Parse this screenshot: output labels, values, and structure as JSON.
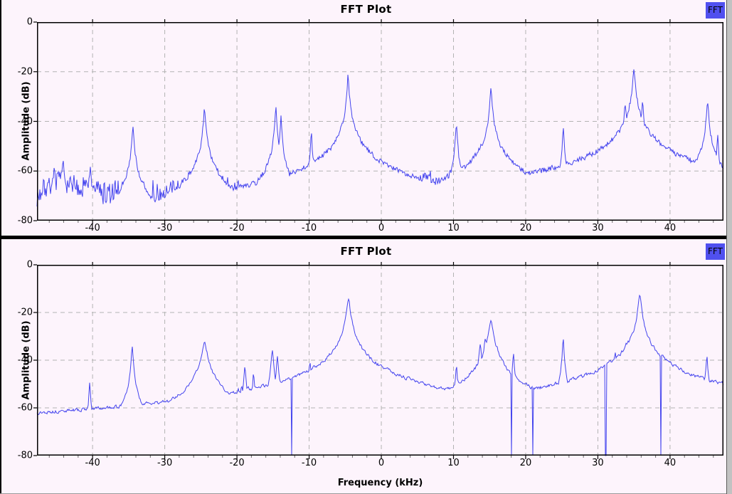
{
  "window": {
    "background": "#fdf4fc",
    "grid_color": "#b3b3b3",
    "axis_color": "#000000",
    "button_bg": "#5050ef"
  },
  "chart_data": [
    {
      "type": "line",
      "title": "FFT Plot",
      "button_label": "FFT",
      "ylabel": "Amplitude (dB)",
      "xlabel": "",
      "x_range": [
        -47.7,
        47.4
      ],
      "ylim": [
        -80,
        0
      ],
      "xticks": [
        -40,
        -30,
        -20,
        -10,
        0,
        10,
        20,
        30,
        40
      ],
      "yticks": [
        0,
        -20,
        -40,
        -60,
        -80
      ],
      "grid": true,
      "legend": "none",
      "line_color": "#4444ee",
      "seed": 7,
      "noise": {
        "mean": -70,
        "jitter": 8,
        "smooth": 0.85,
        "spike_prob": 0.18,
        "spike_depth": 14
      },
      "quiet_zones": [
        [
          17.5,
          24.5,
          -6
        ]
      ],
      "peaks": [
        [
          -45.3,
          -58,
          0.1
        ],
        [
          -44.1,
          -56,
          0.1
        ],
        [
          -42.6,
          -61,
          0.08
        ],
        [
          -40.3,
          -59,
          0.1
        ],
        [
          -34.4,
          -41.5,
          0.09
        ],
        [
          -27.1,
          -63,
          0.4
        ],
        [
          -24.5,
          -35,
          0.1
        ],
        [
          -14.6,
          -35,
          0.09
        ],
        [
          -13.9,
          -38,
          0.08
        ],
        [
          -9.7,
          -46,
          0.09
        ],
        [
          -4.6,
          -22,
          0.09
        ],
        [
          10.4,
          -42,
          0.09
        ],
        [
          15.2,
          -27,
          0.1
        ],
        [
          16.9,
          -53,
          0.08
        ],
        [
          25.2,
          -43,
          0.08
        ],
        [
          33.8,
          -33,
          0.12
        ],
        [
          35.0,
          -19.3,
          0.12
        ],
        [
          36.2,
          -32,
          0.1
        ],
        [
          45.2,
          -32,
          0.1
        ],
        [
          46.6,
          -46,
          0.08
        ]
      ],
      "bumps": [
        [
          -45,
          -64,
          1.5
        ],
        [
          -40.6,
          -65,
          1.5
        ],
        [
          -34.4,
          -64,
          0.8
        ],
        [
          -24.5,
          -59,
          1.6
        ],
        [
          -14.6,
          -61,
          1.2
        ],
        [
          -9.7,
          -63,
          0.8
        ],
        [
          -4.6,
          -61,
          0.7
        ],
        [
          5.8,
          -63,
          2.2
        ],
        [
          10.4,
          -61,
          1.0
        ],
        [
          15.2,
          -58,
          1.3
        ],
        [
          25.2,
          -63,
          0.8
        ],
        [
          31.5,
          -61,
          2.0
        ],
        [
          35,
          -53,
          2.6
        ],
        [
          45.2,
          -56,
          1.2
        ]
      ],
      "notches": []
    },
    {
      "type": "line",
      "title": "FFT Plot",
      "button_label": "FFT",
      "ylabel": "Amplitude (dB)",
      "xlabel": "Frequency (kHz)",
      "x_range": [
        -47.7,
        47.4
      ],
      "ylim": [
        -80,
        0
      ],
      "xticks": [
        -40,
        -30,
        -20,
        -10,
        0,
        10,
        20,
        30,
        40
      ],
      "yticks": [
        0,
        -20,
        -40,
        -60,
        -80
      ],
      "grid": true,
      "legend": "none",
      "line_color": "#4444ee",
      "seed": 13,
      "noise": {
        "mean": -66,
        "jitter": 4.5,
        "smooth": 0.5,
        "spike_prob": 0.04,
        "spike_depth": 16
      },
      "quiet_zones": [
        [
          -47.7,
          -43,
          -3
        ]
      ],
      "peaks": [
        [
          -40.4,
          -50,
          0.08
        ],
        [
          -34.5,
          -34.5,
          0.09
        ],
        [
          -24.5,
          -33,
          0.3
        ],
        [
          -18.9,
          -43,
          0.1
        ],
        [
          -17.7,
          -46,
          0.1
        ],
        [
          -15.1,
          -36.5,
          0.12
        ],
        [
          -14.4,
          -38.5,
          0.1
        ],
        [
          -9.9,
          -41,
          0.09
        ],
        [
          -4.55,
          -14,
          0.17
        ],
        [
          4.3,
          -56,
          0.08
        ],
        [
          10.4,
          -43.5,
          0.1
        ],
        [
          13.7,
          -33.5,
          0.12
        ],
        [
          14.4,
          -31,
          0.15
        ],
        [
          15.2,
          -23.3,
          0.22
        ],
        [
          16.1,
          -35,
          0.12
        ],
        [
          18.3,
          -38,
          0.1
        ],
        [
          25.2,
          -31,
          0.08
        ],
        [
          31.0,
          -44,
          0.1
        ],
        [
          32.4,
          -37,
          0.12
        ],
        [
          33.9,
          -33.5,
          0.12
        ],
        [
          35.8,
          -12.2,
          0.15
        ],
        [
          37.2,
          -40,
          0.15
        ],
        [
          39.8,
          -49,
          0.1
        ],
        [
          45.1,
          -38.5,
          0.1
        ]
      ],
      "bumps": [
        [
          -41,
          -63,
          1.2
        ],
        [
          -35,
          -61,
          0.9
        ],
        [
          -24.5,
          -54,
          1.6
        ],
        [
          -19,
          -52,
          1.8
        ],
        [
          -15,
          -50,
          1.5
        ],
        [
          -10,
          -58,
          0.8
        ],
        [
          -4.6,
          -51,
          1.6
        ],
        [
          7,
          -62,
          2.5
        ],
        [
          12,
          -55,
          2.2
        ],
        [
          15.2,
          -45,
          2.5
        ],
        [
          18.3,
          -54,
          1
        ],
        [
          25.2,
          -58,
          0.9
        ],
        [
          33,
          -48,
          2.0
        ],
        [
          35.8,
          -44,
          2.6
        ],
        [
          40.5,
          -56,
          2.0
        ],
        [
          45.1,
          -52,
          0.9
        ]
      ],
      "notches": [
        -12.4,
        18.0,
        21.0,
        31.1,
        38.7
      ]
    }
  ]
}
